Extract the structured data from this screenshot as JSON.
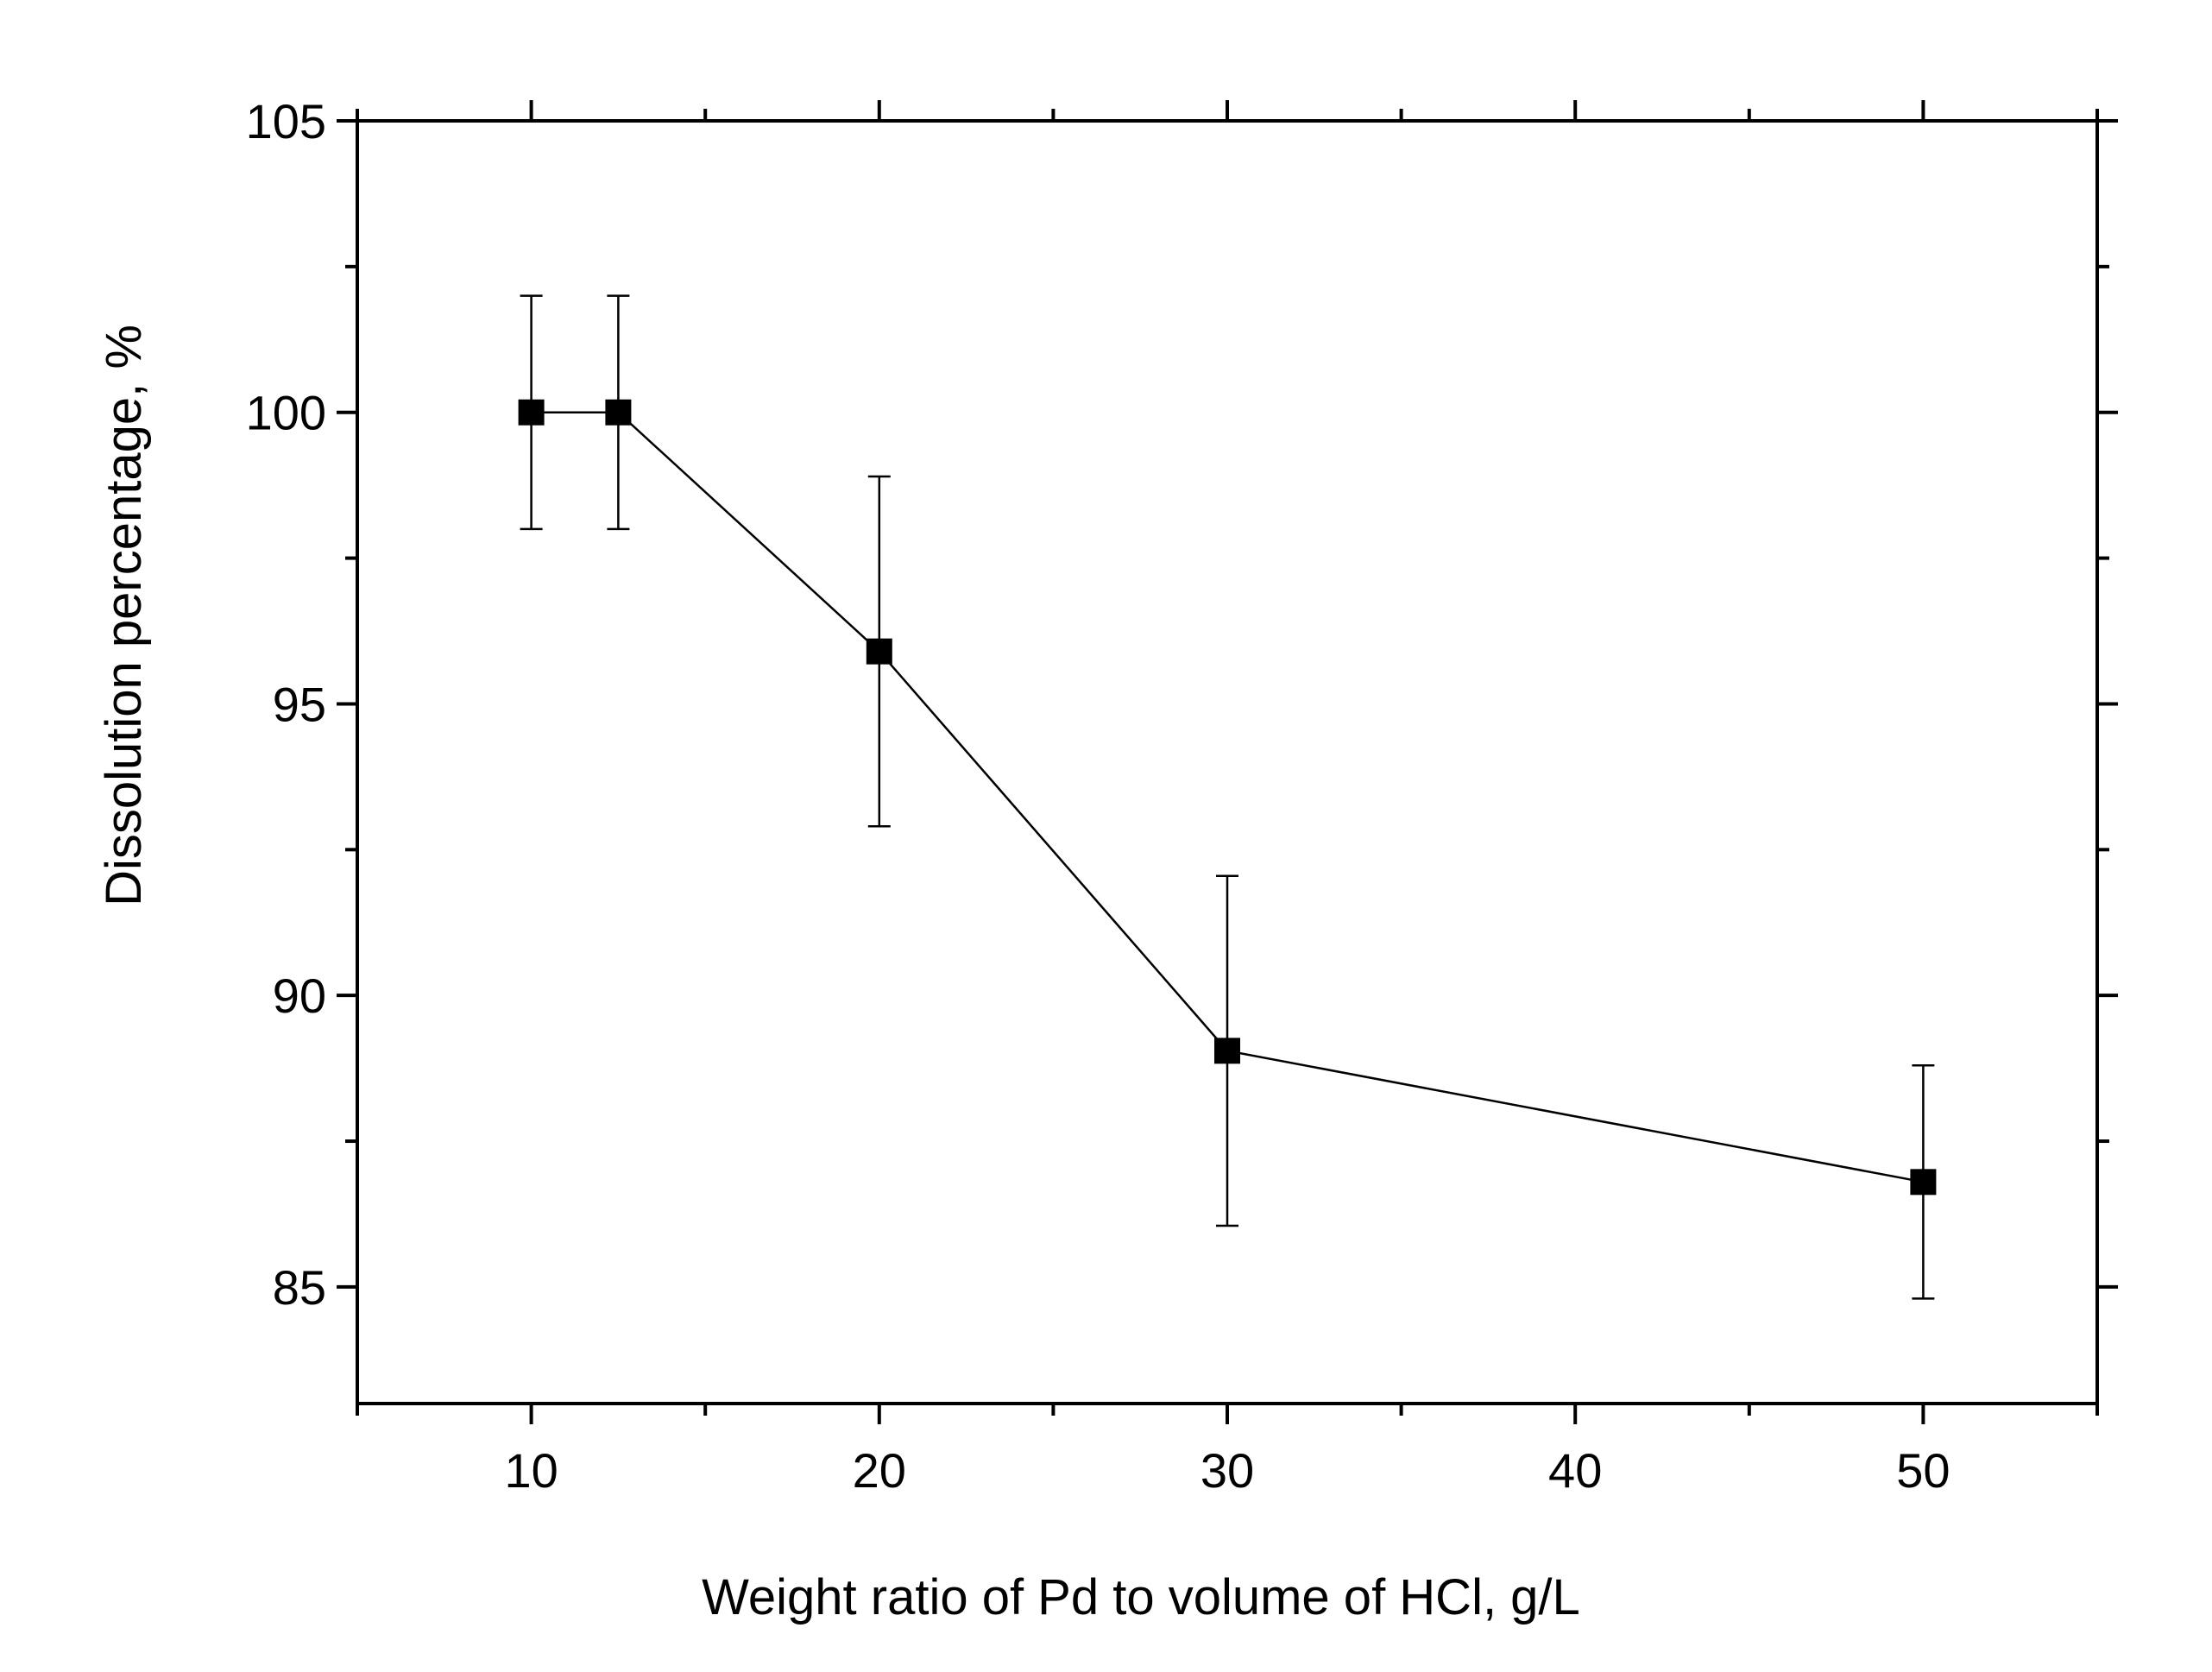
{
  "chart_data": {
    "type": "scatter",
    "title": "",
    "xlabel": "Weight  ratio of Pd to volume of HCl, g/L",
    "ylabel": "Dissolution percentage, %",
    "xlim": [
      5,
      55
    ],
    "ylim": [
      83,
      105
    ],
    "xticks": [
      10,
      20,
      30,
      40,
      50
    ],
    "yticks": [
      85,
      90,
      95,
      100,
      105
    ],
    "grid": false,
    "legend": "none",
    "series": [
      {
        "name": "Dissolution percentage",
        "marker": "square",
        "color": "#000000",
        "line": true,
        "x": [
          10,
          12.5,
          20,
          30,
          50
        ],
        "y": [
          100,
          100,
          95.9,
          89.05,
          86.8
        ],
        "error": [
          2.0,
          2.0,
          3.0,
          3.0,
          2.0
        ]
      }
    ]
  }
}
